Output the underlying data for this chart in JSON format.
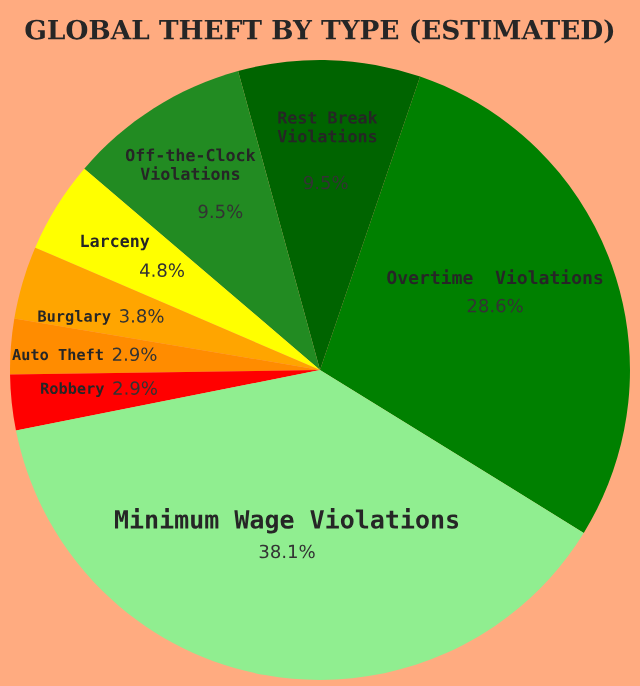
{
  "chart_data": {
    "type": "pie",
    "title": "GLOBAL THEFT BY TYPE (ESTIMATED)",
    "categories": [
      "Overtime  Violations",
      "Rest Break\nViolations",
      "Off-the-Clock\nViolations",
      "Larceny",
      "Burglary",
      "Auto Theft",
      "Robbery",
      "Minimum Wage Violations"
    ],
    "values": [
      28.6,
      9.5,
      9.5,
      4.8,
      3.8,
      2.9,
      2.9,
      38.1
    ],
    "value_labels": [
      "28.6%",
      "9.5%",
      "9.5%",
      "4.8%",
      "3.8%",
      "2.9%",
      "2.9%",
      "38.1%"
    ],
    "colors": [
      "#008000",
      "#006400",
      "#228b22",
      "#ffff00",
      "#ffa500",
      "#ff8c00",
      "#ff0000",
      "#90ee90"
    ],
    "legend": false
  }
}
